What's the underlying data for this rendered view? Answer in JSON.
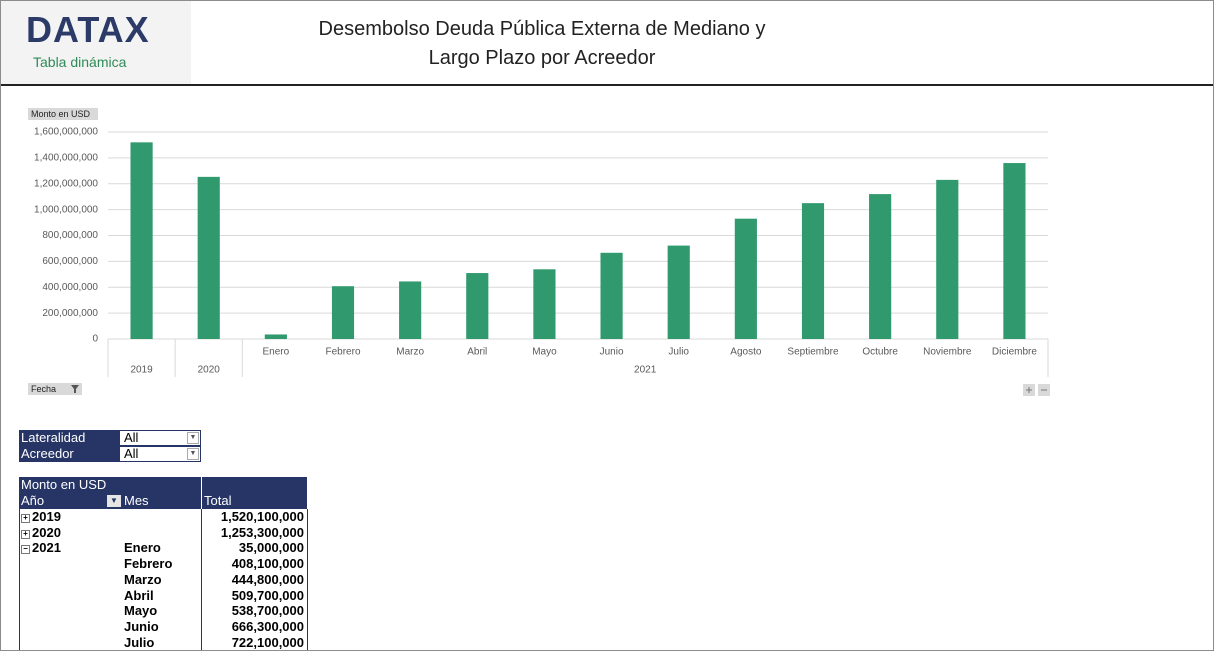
{
  "header": {
    "logo": "DATAX",
    "subtitle": "Tabla dinámica",
    "title": "Desembolso Deuda Pública Externa de Mediano y Largo Plazo por Acreedor"
  },
  "chart_data": {
    "type": "bar",
    "y_axis_label": "Monto en USD",
    "x_axis_label": "Fecha",
    "color": "#31996e",
    "grid": true,
    "categories": [
      null,
      null,
      "Enero",
      "Febrero",
      "Marzo",
      "Abril",
      "Mayo",
      "Junio",
      "Julio",
      "Agosto",
      "Septiembre",
      "Octubre",
      "Noviembre",
      "Diciembre"
    ],
    "x_groups": [
      {
        "label": "2019",
        "size": 1
      },
      {
        "label": "2020",
        "size": 1
      },
      {
        "label": "2021",
        "size": 12
      }
    ],
    "values": [
      1520100000,
      1253300000,
      35000000,
      408100000,
      444800000,
      509700000,
      538700000,
      666300000,
      722100000,
      930000000,
      1050000000,
      1120000000,
      1230000000,
      1360000000
    ],
    "ylim": [
      0,
      1600000000
    ],
    "yticks": [
      0,
      {
        "value": 200000000,
        "label": "200,000,000"
      },
      {
        "value": 400000000,
        "label": "400,000,000"
      },
      {
        "value": 600000000,
        "label": "600,000,000"
      },
      {
        "value": 800000000,
        "label": "800,000,000"
      },
      {
        "value": 1000000000,
        "label": "1,000,000,000"
      },
      {
        "value": 1200000000,
        "label": "1,200,000,000"
      },
      {
        "value": 1400000000,
        "label": "1,400,000,000"
      },
      {
        "value": 1600000000,
        "label": "1,600,000,000"
      }
    ]
  },
  "filters": [
    {
      "label": "Lateralidad",
      "value": "All"
    },
    {
      "label": "Acreedor",
      "value": "All"
    }
  ],
  "pivot": {
    "value_field": "Monto en USD",
    "row_field": "Año",
    "column_field": "Mes",
    "total_header": "Total",
    "rows": [
      {
        "year": "2019",
        "collapsed": true,
        "total": "1,520,100,000"
      },
      {
        "year": "2020",
        "collapsed": true,
        "total": "1,253,300,000"
      },
      {
        "year": "2021",
        "collapsed": false,
        "month": "Enero",
        "total": "35,000,000"
      },
      {
        "month": "Febrero",
        "total": "408,100,000"
      },
      {
        "month": "Marzo",
        "total": "444,800,000"
      },
      {
        "month": "Abril",
        "total": "509,700,000"
      },
      {
        "month": "Mayo",
        "total": "538,700,000"
      },
      {
        "month": "Junio",
        "total": "666,300,000"
      },
      {
        "month": "Julio",
        "total": "722,100,000"
      }
    ]
  }
}
